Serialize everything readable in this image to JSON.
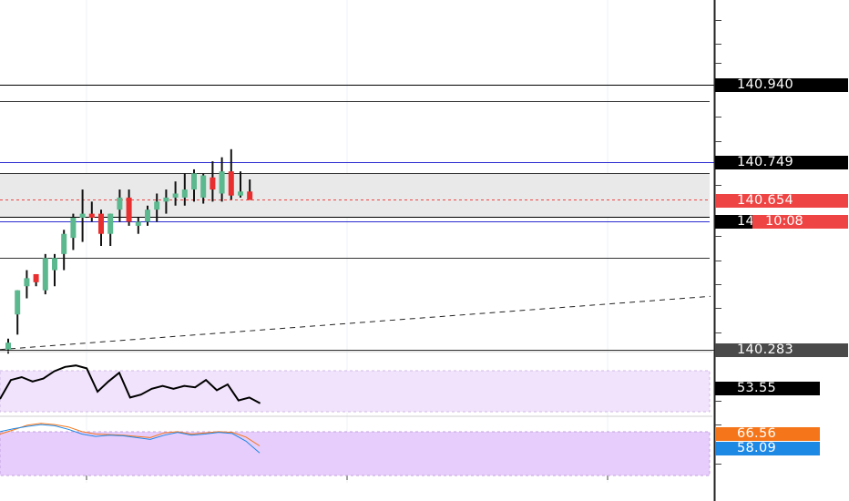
{
  "chart_data": {
    "type": "candlestick",
    "title": "",
    "price_axis": {
      "min": 140.15,
      "max": 141.13,
      "tick_labels_visible": false
    },
    "candles": [
      {
        "o": 140.283,
        "h": 140.31,
        "l": 140.273,
        "c": 140.3
      },
      {
        "o": 140.37,
        "h": 140.43,
        "l": 140.32,
        "c": 140.43
      },
      {
        "o": 140.44,
        "h": 140.48,
        "l": 140.41,
        "c": 140.46
      },
      {
        "o": 140.47,
        "h": 140.47,
        "l": 140.44,
        "c": 140.45
      },
      {
        "o": 140.43,
        "h": 140.52,
        "l": 140.42,
        "c": 140.51
      },
      {
        "o": 140.48,
        "h": 140.52,
        "l": 140.44,
        "c": 140.51
      },
      {
        "o": 140.52,
        "h": 140.58,
        "l": 140.48,
        "c": 140.57
      },
      {
        "o": 140.56,
        "h": 140.62,
        "l": 140.53,
        "c": 140.61
      },
      {
        "o": 140.61,
        "h": 140.68,
        "l": 140.55,
        "c": 140.62
      },
      {
        "o": 140.62,
        "h": 140.65,
        "l": 140.6,
        "c": 140.61
      },
      {
        "o": 140.62,
        "h": 140.63,
        "l": 140.54,
        "c": 140.57
      },
      {
        "o": 140.57,
        "h": 140.62,
        "l": 140.54,
        "c": 140.62
      },
      {
        "o": 140.63,
        "h": 140.68,
        "l": 140.6,
        "c": 140.66
      },
      {
        "o": 140.66,
        "h": 140.68,
        "l": 140.59,
        "c": 140.6
      },
      {
        "o": 140.59,
        "h": 140.61,
        "l": 140.57,
        "c": 140.6
      },
      {
        "o": 140.6,
        "h": 140.64,
        "l": 140.59,
        "c": 140.63
      },
      {
        "o": 140.63,
        "h": 140.67,
        "l": 140.6,
        "c": 140.65
      },
      {
        "o": 140.65,
        "h": 140.68,
        "l": 140.62,
        "c": 140.66
      },
      {
        "o": 140.66,
        "h": 140.7,
        "l": 140.64,
        "c": 140.67
      },
      {
        "o": 140.66,
        "h": 140.72,
        "l": 140.64,
        "c": 140.68
      },
      {
        "o": 140.68,
        "h": 140.73,
        "l": 140.65,
        "c": 140.72
      },
      {
        "o": 140.66,
        "h": 140.72,
        "l": 140.645,
        "c": 140.715
      },
      {
        "o": 140.71,
        "h": 140.75,
        "l": 140.65,
        "c": 140.68
      },
      {
        "o": 140.67,
        "h": 140.76,
        "l": 140.65,
        "c": 140.725
      },
      {
        "o": 140.725,
        "h": 140.78,
        "l": 140.655,
        "c": 140.665
      },
      {
        "o": 140.665,
        "h": 140.725,
        "l": 140.66,
        "c": 140.675
      },
      {
        "o": 140.675,
        "h": 140.705,
        "l": 140.654,
        "c": 140.654
      }
    ],
    "bullish_color": "#5cb88e",
    "bearish_color": "#e82e2e",
    "horizontal_levels": [
      {
        "price": 140.94,
        "color": "#000000",
        "tag_visible": true
      },
      {
        "price": 140.9,
        "color": "#333333",
        "tag_visible": false
      },
      {
        "price": 140.749,
        "color": "#2a2ad0",
        "tag_visible": true
      },
      {
        "price": 140.72,
        "color": "#333333",
        "tag_visible": false
      },
      {
        "price": 140.612,
        "color": "#000000",
        "tag_visible": false
      },
      {
        "price": 140.602,
        "color": "#2a2ad0",
        "tag_visible": false
      },
      {
        "price": 140.51,
        "color": "#333333",
        "tag_visible": false
      },
      {
        "price": 140.283,
        "color": "#333333",
        "tag_visible": true
      }
    ],
    "zone": {
      "top": 140.72,
      "bottom": 140.612
    },
    "current_price": 140.654,
    "price_tags": [
      {
        "value": "140.940",
        "price": 140.94,
        "bg": "#000000",
        "fg": "#ffffff"
      },
      {
        "value": "140.749",
        "price": 140.749,
        "bg": "#000000",
        "fg": "#ffffff"
      },
      {
        "value": "140.654",
        "price": 140.654,
        "bg": "#ef4444",
        "fg": "#ffffff"
      },
      {
        "value": "140.283",
        "price": 140.283,
        "bg": "#4a4a4a",
        "fg": "#ffffff"
      }
    ],
    "hidden_tag_text": "14",
    "countdown": "10:08",
    "trendline": {
      "from": 140.283,
      "to": 140.415,
      "style": "dashed"
    },
    "rsi": {
      "value": "53.55",
      "value_bg": "#000000",
      "band_fill": "#f1e3fb",
      "line_color": "#000000",
      "points": [
        45,
        58,
        60,
        57,
        59,
        64,
        67,
        68,
        66,
        50,
        57,
        63,
        46,
        48,
        52,
        54,
        52,
        54,
        53,
        58,
        51,
        55,
        44,
        46,
        42
      ]
    },
    "stochastic": {
      "k_value": "66.56",
      "d_value": "58.09",
      "k_color": "#f5761a",
      "d_color": "#1e88e5",
      "band_fill": "#e6cdfb",
      "k_points": [
        70,
        77,
        85,
        88,
        86,
        82,
        74,
        70,
        69,
        68,
        66,
        64,
        72,
        74,
        70,
        72,
        74,
        73,
        65,
        50
      ],
      "d_points": [
        74,
        79,
        83,
        86,
        84,
        78,
        70,
        66,
        68,
        67,
        64,
        61,
        68,
        73,
        68,
        70,
        73,
        71,
        58,
        38
      ]
    }
  }
}
